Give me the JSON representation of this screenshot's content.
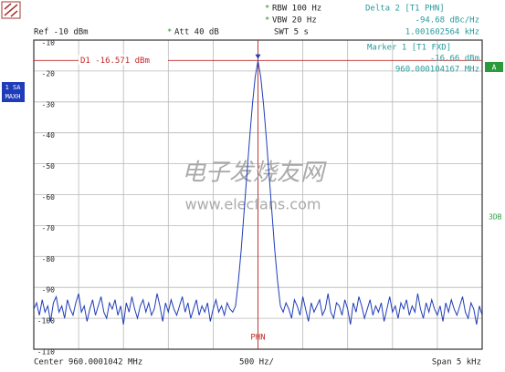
{
  "chart_data": {
    "type": "line",
    "texts": {
      "rbw_star": "*",
      "rbw": "RBW 100 Hz",
      "vbw_star": "*",
      "vbw": "VBW 20 Hz",
      "ref": "Ref -10 dBm",
      "att_star": "*",
      "att": "Att 40 dB",
      "swt": "SWT 5 s",
      "delta": "Delta 2 [T1 PHN]",
      "delta_level": "-94.68 dBc/Hz",
      "delta_freq": "1.001602564 kHz",
      "marker": "Marker 1 [T1 FXD]",
      "marker_level": "-16.66 dBm",
      "marker_freq": "960.000104167 MHz",
      "trace_label": "1 SA",
      "detector": "MAXH",
      "a_flag": "A",
      "db3": "3DB",
      "phn": "PHN",
      "center": "Center 960.0001042 MHz",
      "per_div": "500 Hz/",
      "span": "Span 5 kHz",
      "watermark_cn": "电子发烧友网",
      "watermark_url": "www.elecfans.com"
    },
    "display_line": {
      "value": -16.571,
      "label": "D1 -16.571 dBm"
    },
    "ylim": [
      -110,
      -10
    ],
    "yticks": [
      -10,
      -20,
      -30,
      -40,
      -50,
      -60,
      -70,
      -80,
      -90,
      -100,
      -110
    ],
    "grid": true,
    "series": [
      {
        "color": "#1f3cb8",
        "values": [
          -97,
          -95,
          -99,
          -94,
          -98,
          -96,
          -101,
          -95,
          -93,
          -98,
          -96,
          -100,
          -94,
          -97,
          -99,
          -95,
          -92,
          -98,
          -96,
          -101,
          -97,
          -94,
          -99,
          -96,
          -93,
          -98,
          -100,
          -95,
          -97,
          -94,
          -99,
          -96,
          -102,
          -95,
          -98,
          -93,
          -97,
          -100,
          -96,
          -94,
          -98,
          -95,
          -99,
          -97,
          -92,
          -96,
          -101,
          -95,
          -98,
          -94,
          -97,
          -99,
          -96,
          -93,
          -98,
          -95,
          -100,
          -97,
          -94,
          -99,
          -96,
          -98,
          -95,
          -101,
          -97,
          -94,
          -98,
          -96,
          -99,
          -95,
          -97,
          -98,
          -96,
          -88,
          -78,
          -66,
          -54,
          -42,
          -31,
          -22,
          -16.66,
          -22,
          -31,
          -42,
          -54,
          -66,
          -78,
          -88,
          -96,
          -98,
          -95,
          -97,
          -100,
          -94,
          -96,
          -99,
          -93,
          -97,
          -101,
          -95,
          -98,
          -96,
          -94,
          -99,
          -97,
          -92,
          -98,
          -100,
          -95,
          -96,
          -99,
          -94,
          -97,
          -102,
          -95,
          -98,
          -93,
          -96,
          -100,
          -97,
          -94,
          -99,
          -96,
          -98,
          -95,
          -101,
          -97,
          -93,
          -98,
          -96,
          -100,
          -95,
          -97,
          -94,
          -99,
          -96,
          -98,
          -92,
          -97,
          -100,
          -95,
          -98,
          -94,
          -97,
          -99,
          -96,
          -101,
          -95,
          -98,
          -94,
          -97,
          -99,
          -96,
          -93,
          -98,
          -100,
          -95,
          -97,
          -102,
          -96,
          -99
        ]
      }
    ]
  }
}
